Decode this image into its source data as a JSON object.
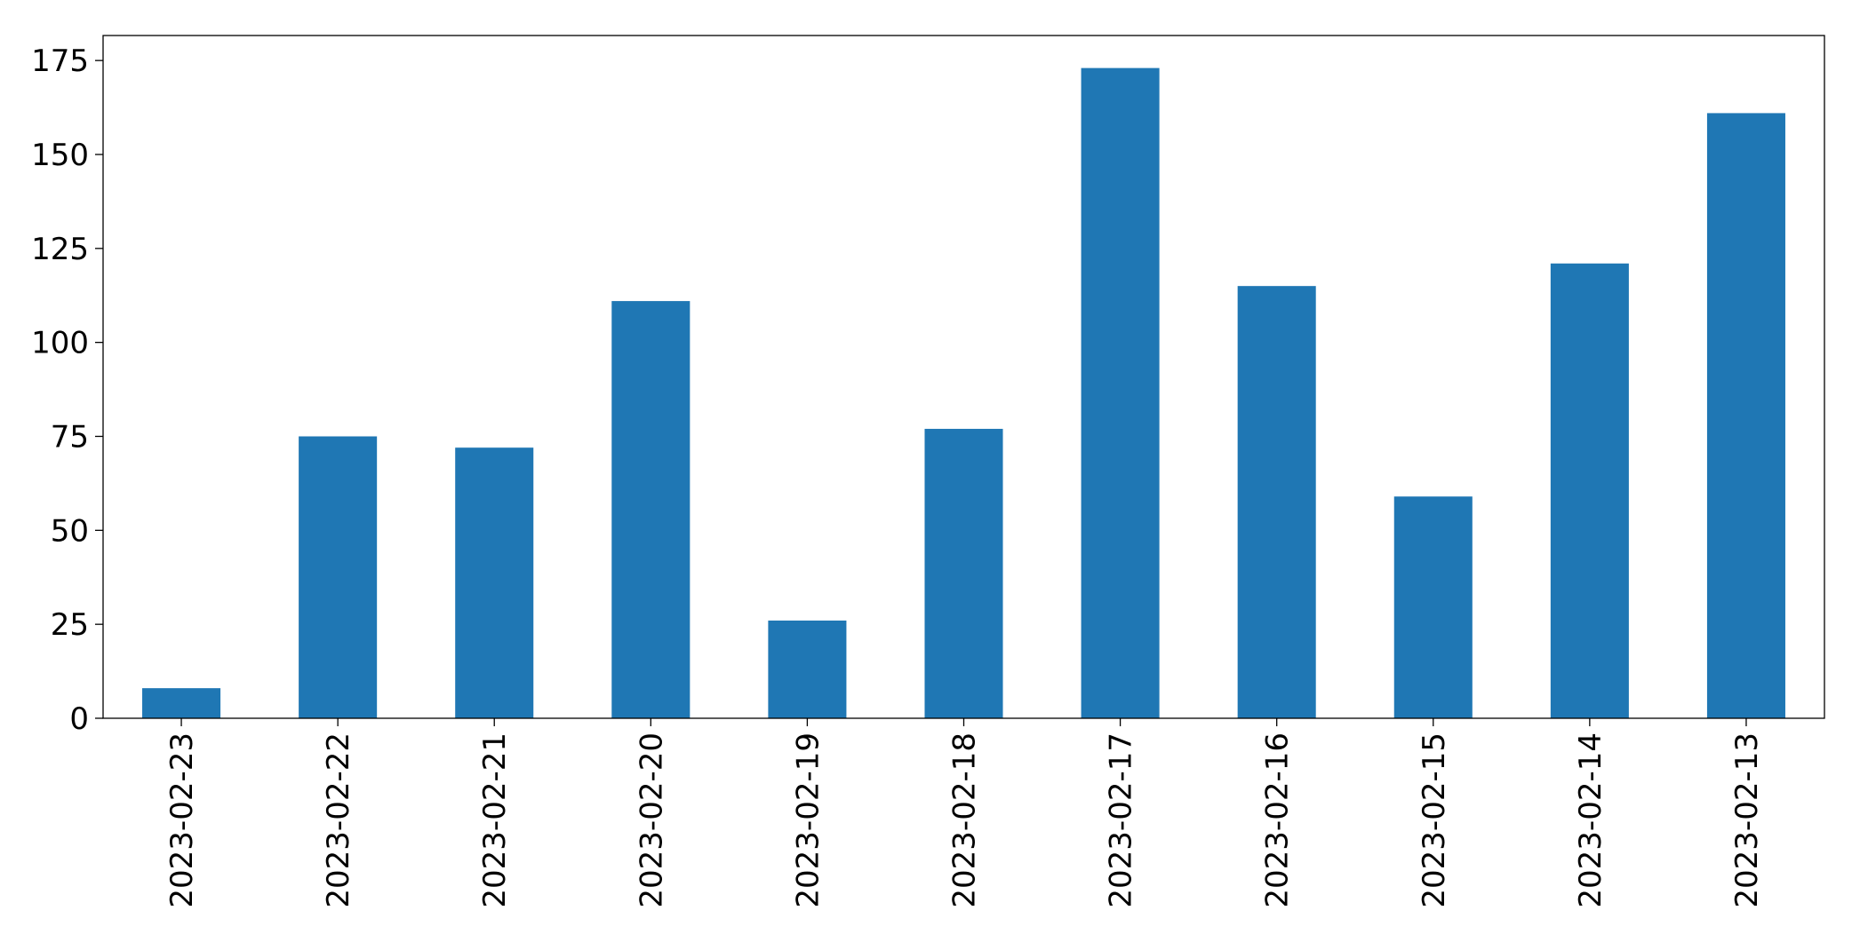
{
  "chart_data": {
    "type": "bar",
    "categories": [
      "2023-02-23",
      "2023-02-22",
      "2023-02-21",
      "2023-02-20",
      "2023-02-19",
      "2023-02-18",
      "2023-02-17",
      "2023-02-16",
      "2023-02-15",
      "2023-02-14",
      "2023-02-13"
    ],
    "values": [
      8,
      75,
      72,
      111,
      26,
      77,
      173,
      115,
      59,
      121,
      161
    ],
    "color": "#1f77b4",
    "ylim": [
      0,
      181.65
    ],
    "yticks": [
      0,
      25,
      50,
      75,
      100,
      125,
      150,
      175
    ],
    "grid": false
  }
}
